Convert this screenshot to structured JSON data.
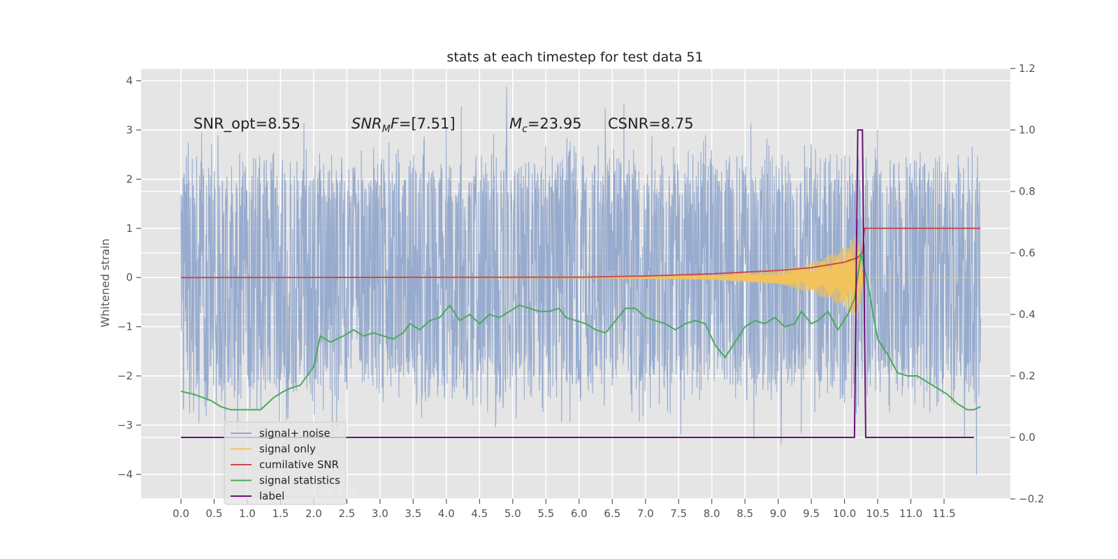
{
  "chart_data": {
    "type": "line",
    "title": "stats at each timestep for test data 51",
    "xlabel": "",
    "ylabel": "Whitened strain",
    "xlim": [
      -0.6,
      12.5
    ],
    "ylim": [
      -4.5,
      4.25
    ],
    "y2lim": [
      -0.2,
      1.2
    ],
    "x_ticks": [
      "0.0",
      "0.5",
      "1.0",
      "1.5",
      "2.0",
      "2.5",
      "3.0",
      "3.5",
      "4.0",
      "4.5",
      "5.0",
      "5.5",
      "6.0",
      "6.5",
      "7.0",
      "7.5",
      "8.0",
      "8.5",
      "9.0",
      "9.5",
      "10.0",
      "10.5",
      "11.0",
      "11.5"
    ],
    "y_ticks": [
      "4",
      "3",
      "2",
      "1",
      "0",
      "−1",
      "−2",
      "−3",
      "−4"
    ],
    "y2_ticks": [
      "1.2",
      "1.0",
      "0.8",
      "0.6",
      "0.4",
      "0.2",
      "0.0",
      "−0.2"
    ],
    "annotations": {
      "snr_opt": "SNR_opt=8.55",
      "snr_mf_base": "SNR",
      "snr_mf_sub": "M",
      "snr_mf_rest": "F=[7.51]",
      "mc_base": "M",
      "mc_sub": "c",
      "mc_rest": "=23.95",
      "csnr": "CSNR=8.75"
    },
    "grid": true,
    "legend_position": "lower-left",
    "legend": [
      {
        "label": "signal+ noise",
        "color": "#92a8cc"
      },
      {
        "label": "signal only",
        "color": "#f2c35b"
      },
      {
        "label": "cumilative SNR",
        "color": "#c84a4f"
      },
      {
        "label": "signal statistics",
        "color": "#4aa95a"
      },
      {
        "label": "label",
        "color": "#6b0f7a"
      }
    ],
    "legend_ghost_text": "cumilative SNR",
    "series": [
      {
        "name": "signal+ noise",
        "axis": "left",
        "color": "#92a8cc",
        "envelope": {
          "x_range": [
            0.0,
            12.05
          ],
          "typical_low": -1.8,
          "typical_high": 1.8,
          "max": 3.88,
          "min": -4.0
        }
      },
      {
        "name": "signal only",
        "axis": "left",
        "color": "#f2c35b",
        "amplitude_envelope": {
          "x": [
            0.0,
            6.0,
            8.0,
            9.0,
            9.5,
            10.0,
            10.1,
            10.2,
            10.25,
            10.3,
            12.05
          ],
          "amp": [
            0.0,
            0.01,
            0.05,
            0.15,
            0.3,
            0.6,
            0.75,
            0.9,
            0.4,
            0.0,
            0.0
          ]
        }
      },
      {
        "name": "cumilative SNR",
        "axis": "right",
        "color": "#c84a4f",
        "x": [
          0.0,
          6.0,
          7.0,
          8.0,
          9.0,
          9.5,
          10.0,
          10.2,
          10.27,
          10.3,
          12.05
        ],
        "y": [
          0.52,
          0.521,
          0.525,
          0.532,
          0.543,
          0.552,
          0.57,
          0.585,
          0.6,
          0.68,
          0.68
        ]
      },
      {
        "name": "signal statistics",
        "axis": "right",
        "color": "#4aa95a",
        "x": [
          0.0,
          0.2,
          0.45,
          0.6,
          0.75,
          1.0,
          1.2,
          1.4,
          1.55,
          1.65,
          1.8,
          2.0,
          2.1,
          2.25,
          2.45,
          2.6,
          2.75,
          2.9,
          3.05,
          3.2,
          3.35,
          3.45,
          3.6,
          3.75,
          3.9,
          4.05,
          4.2,
          4.35,
          4.5,
          4.65,
          4.8,
          4.95,
          5.1,
          5.25,
          5.4,
          5.55,
          5.7,
          5.8,
          5.95,
          6.1,
          6.25,
          6.4,
          6.55,
          6.7,
          6.85,
          7.0,
          7.15,
          7.3,
          7.45,
          7.6,
          7.75,
          7.9,
          8.05,
          8.2,
          8.35,
          8.5,
          8.65,
          8.8,
          8.95,
          9.1,
          9.25,
          9.35,
          9.5,
          9.6,
          9.75,
          9.9,
          10.05,
          10.15,
          10.25,
          10.35,
          10.5,
          10.65,
          10.8,
          10.95,
          11.1,
          11.25,
          11.4,
          11.55,
          11.7,
          11.85,
          11.95,
          12.05
        ],
        "y": [
          0.15,
          0.14,
          0.12,
          0.1,
          0.09,
          0.09,
          0.09,
          0.13,
          0.15,
          0.16,
          0.17,
          0.23,
          0.33,
          0.31,
          0.33,
          0.35,
          0.33,
          0.34,
          0.33,
          0.32,
          0.34,
          0.37,
          0.35,
          0.38,
          0.39,
          0.43,
          0.38,
          0.4,
          0.37,
          0.4,
          0.39,
          0.41,
          0.43,
          0.42,
          0.41,
          0.41,
          0.42,
          0.39,
          0.38,
          0.37,
          0.35,
          0.34,
          0.38,
          0.42,
          0.42,
          0.39,
          0.38,
          0.37,
          0.35,
          0.37,
          0.38,
          0.37,
          0.3,
          0.26,
          0.31,
          0.36,
          0.38,
          0.37,
          0.39,
          0.36,
          0.37,
          0.41,
          0.37,
          0.38,
          0.41,
          0.35,
          0.4,
          0.45,
          0.6,
          0.5,
          0.32,
          0.27,
          0.21,
          0.2,
          0.2,
          0.18,
          0.16,
          0.14,
          0.11,
          0.09,
          0.09,
          0.1
        ]
      },
      {
        "name": "label",
        "axis": "right",
        "color": "#6b0f7a",
        "x": [
          0.0,
          10.15,
          10.2,
          10.27,
          10.32,
          11.95
        ],
        "y": [
          0.0,
          0.0,
          1.0,
          1.0,
          0.0,
          0.0
        ]
      }
    ]
  }
}
